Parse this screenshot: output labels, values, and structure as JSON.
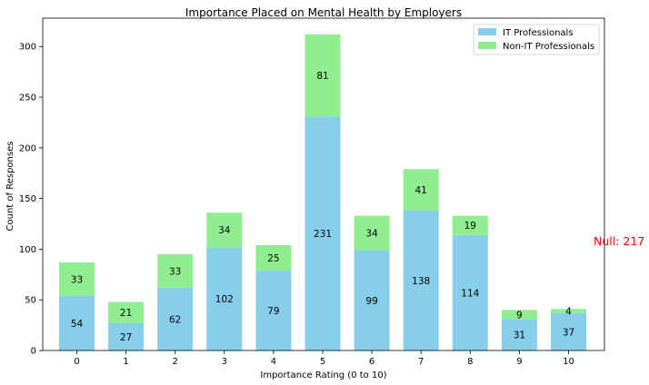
{
  "chart_data": {
    "type": "bar",
    "stacked": true,
    "title": "Importance Placed on Mental Health by Employers",
    "xlabel": "Importance Rating (0 to 10)",
    "ylabel": "Count of Responses",
    "categories": [
      "0",
      "1",
      "2",
      "3",
      "4",
      "5",
      "6",
      "7",
      "8",
      "9",
      "10"
    ],
    "series": [
      {
        "name": "IT Professionals",
        "color": "#87ceeb",
        "values": [
          54,
          27,
          62,
          102,
          79,
          231,
          99,
          138,
          114,
          31,
          37
        ]
      },
      {
        "name": "Non-IT Professionals",
        "color": "#90ee90",
        "values": [
          33,
          21,
          33,
          34,
          25,
          81,
          34,
          41,
          19,
          9,
          4
        ]
      }
    ],
    "ylim": [
      0,
      328
    ],
    "yticks": [
      0,
      50,
      100,
      150,
      200,
      250,
      300
    ],
    "legend_position": "top-right",
    "grid": false,
    "annotation": {
      "text": "Null: 217",
      "color": "#ff0000"
    }
  }
}
